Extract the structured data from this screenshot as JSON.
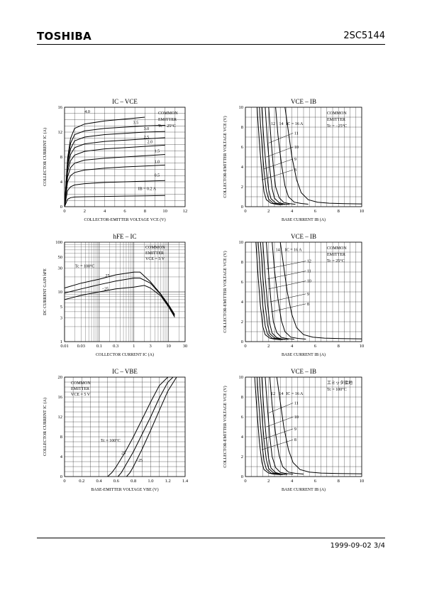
{
  "header": {
    "brand": "TOSHIBA",
    "part_number": "2SC5144"
  },
  "footer": {
    "date_page": "1999-09-02   3/4"
  },
  "chart_data": [
    {
      "id": "ic-vce",
      "type": "line",
      "title": "IC – VCE",
      "xlabel": "COLLECTOR-EMITTER VOLTAGE  VCE  (V)",
      "ylabel": "COLLECTOR CURRENT  IC  (A)",
      "xlim": [
        0,
        12
      ],
      "ylim": [
        0,
        16
      ],
      "xticks": [
        0,
        2,
        4,
        6,
        8,
        10,
        12
      ],
      "yticks": [
        0,
        4,
        8,
        12,
        16
      ],
      "notes": [
        "COMMON",
        "EMITTER",
        "Tc = 25°C"
      ],
      "param": "IB",
      "series": [
        {
          "name": "0.2 A",
          "label": "IB = 0.2 A",
          "x": [
            0,
            0.3,
            0.6,
            1,
            2,
            4,
            6,
            8,
            10
          ],
          "y": [
            0,
            1.2,
            1.45,
            1.55,
            1.6,
            1.65,
            1.7,
            1.75,
            1.8
          ]
        },
        {
          "name": "0.5",
          "label": "0.5",
          "x": [
            0,
            0.3,
            0.6,
            1,
            2,
            4,
            6,
            8,
            10
          ],
          "y": [
            0,
            2.6,
            3.2,
            3.5,
            3.7,
            3.9,
            4.0,
            4.1,
            4.2
          ]
        },
        {
          "name": "1.0",
          "label": "1.0",
          "x": [
            0,
            0.3,
            0.6,
            1,
            2,
            4,
            6,
            8,
            10
          ],
          "y": [
            0,
            4,
            5,
            5.5,
            5.9,
            6.2,
            6.4,
            6.55,
            6.7
          ]
        },
        {
          "name": "1.5",
          "label": "1.5",
          "x": [
            0,
            0.3,
            0.6,
            1,
            2,
            4,
            6,
            8,
            10
          ],
          "y": [
            0,
            4.8,
            6.3,
            7,
            7.5,
            7.8,
            8.0,
            8.2,
            8.4
          ]
        },
        {
          "name": "2.0",
          "label": "2.0",
          "x": [
            0,
            0.3,
            0.6,
            1,
            2,
            4,
            6,
            8,
            10
          ],
          "y": [
            0,
            5.6,
            7.4,
            8.3,
            8.9,
            9.3,
            9.5,
            9.7,
            9.9
          ]
        },
        {
          "name": "2.5",
          "label": "2.5",
          "x": [
            0,
            0.3,
            0.6,
            1,
            2,
            4,
            6,
            8,
            10
          ],
          "y": [
            0,
            6.2,
            8.4,
            9.5,
            10.1,
            10.5,
            10.7,
            10.9,
            11.1
          ]
        },
        {
          "name": "3.0",
          "label": "3.0",
          "x": [
            0,
            0.3,
            0.6,
            1,
            2,
            4,
            6,
            8,
            10
          ],
          "y": [
            0,
            6.8,
            9.3,
            10.6,
            11.2,
            11.6,
            11.8,
            12.0,
            12.1
          ]
        },
        {
          "name": "3.5",
          "label": "3.5",
          "x": [
            0,
            0.3,
            0.6,
            1,
            2,
            4,
            6,
            8,
            10
          ],
          "y": [
            0,
            7.3,
            10.2,
            11.6,
            12.2,
            12.6,
            12.8,
            13.0,
            13.1
          ]
        },
        {
          "name": "4.0",
          "label": "4.0",
          "x": [
            0,
            0.3,
            0.6,
            1,
            2,
            4,
            6,
            8
          ],
          "y": [
            0,
            7.8,
            11,
            12.6,
            13.3,
            13.8,
            14.1,
            14.4
          ]
        }
      ]
    },
    {
      "id": "vce-ib-m25",
      "type": "line",
      "title": "VCE – IB",
      "xlabel": "BASE CURRENT  IB  (A)",
      "ylabel": "COLLECTOR-EMITTER VOLTAGE  VCE  (V)",
      "xlim": [
        0,
        10
      ],
      "ylim": [
        0,
        10
      ],
      "xticks": [
        0,
        2,
        4,
        6,
        8,
        10
      ],
      "yticks": [
        0,
        2,
        4,
        6,
        8,
        10
      ],
      "notes": [
        "COMMON",
        "EMITTER",
        "Tc = −25°C"
      ],
      "param": "IC",
      "labels": [
        "12",
        "14",
        "IC = 16 A",
        "11",
        "10",
        "9",
        "8"
      ],
      "series": [
        {
          "name": "8",
          "x": [
            1.0,
            1.2,
            1.4,
            1.6,
            1.8,
            2.2,
            2.6,
            3
          ],
          "y": [
            10,
            6.5,
            3.5,
            1.5,
            0.7,
            0.35,
            0.25,
            0.2
          ]
        },
        {
          "name": "9",
          "x": [
            1.2,
            1.4,
            1.6,
            1.8,
            2.0,
            2.4,
            2.8,
            3.2
          ],
          "y": [
            10,
            6.5,
            3.6,
            1.6,
            0.75,
            0.35,
            0.25,
            0.2
          ]
        },
        {
          "name": "10",
          "x": [
            1.4,
            1.6,
            1.8,
            2.0,
            2.2,
            2.6,
            3,
            3.4
          ],
          "y": [
            10,
            6.5,
            3.7,
            1.7,
            0.8,
            0.38,
            0.27,
            0.22
          ]
        },
        {
          "name": "11",
          "x": [
            1.7,
            1.9,
            2.1,
            2.3,
            2.5,
            2.9,
            3.3,
            3.8
          ],
          "y": [
            10,
            6.5,
            3.8,
            1.8,
            0.85,
            0.4,
            0.28,
            0.22
          ]
        },
        {
          "name": "12",
          "x": [
            2.0,
            2.2,
            2.4,
            2.6,
            2.9,
            3.3,
            3.8,
            4.3
          ],
          "y": [
            10,
            6.8,
            4.0,
            2.0,
            0.9,
            0.42,
            0.3,
            0.24
          ]
        },
        {
          "name": "14",
          "x": [
            2.6,
            2.8,
            3.1,
            3.4,
            3.7,
            4.2,
            4.8,
            5.4
          ],
          "y": [
            10,
            7.2,
            4.3,
            2.1,
            1.0,
            0.45,
            0.32,
            0.25
          ]
        },
        {
          "name": "16",
          "x": [
            3.4,
            3.7,
            4.0,
            4.4,
            4.8,
            5.4,
            6.2,
            7.2,
            8.5,
            10
          ],
          "y": [
            10,
            7.5,
            5.0,
            2.7,
            1.4,
            0.7,
            0.45,
            0.35,
            0.3,
            0.28
          ]
        }
      ]
    },
    {
      "id": "hfe-ic",
      "type": "line",
      "title": "hFE – IC",
      "xlabel": "COLLECTOR  CURRENT  IC  (A)",
      "ylabel": "DC CURRENT GAIN  hFE",
      "xscale": "log",
      "yscale": "log",
      "xlim": [
        0.01,
        30
      ],
      "ylim": [
        1,
        100
      ],
      "xticks": [
        0.01,
        0.03,
        0.1,
        0.3,
        1,
        3,
        10,
        30
      ],
      "xticklabels": [
        "0.01",
        "0.03",
        "0.1",
        "0.3",
        "1",
        "3",
        "10",
        "30"
      ],
      "yticks": [
        1,
        3,
        5,
        10,
        30,
        50,
        100
      ],
      "notes": [
        "COMMON",
        "EMITTER",
        "VCE = 5 V"
      ],
      "param": "Tc",
      "series": [
        {
          "name": "Tc = 100°C",
          "x": [
            0.01,
            0.03,
            0.1,
            0.3,
            1,
            1.5,
            3,
            6,
            10,
            15
          ],
          "y": [
            12,
            15,
            18,
            22,
            25,
            25,
            16,
            9,
            5.5,
            3.5
          ]
        },
        {
          "name": "25",
          "x": [
            0.01,
            0.03,
            0.1,
            0.3,
            1,
            1.5,
            3,
            6,
            10,
            15
          ],
          "y": [
            9.5,
            11.5,
            14,
            16.5,
            19,
            19,
            15,
            8.8,
            5.2,
            3.3
          ]
        },
        {
          "name": "−25",
          "x": [
            0.01,
            0.03,
            0.1,
            0.3,
            1,
            2,
            3,
            6,
            10,
            15
          ],
          "y": [
            7,
            8.5,
            10,
            11.5,
            12.5,
            13.5,
            12,
            8.3,
            5.0,
            3.1
          ]
        }
      ]
    },
    {
      "id": "vce-ib-25",
      "type": "line",
      "title": "VCE – IB",
      "xlabel": "BASE CURRENT  IB  (A)",
      "ylabel": "COLLECTOR-EMITTER VOLTAGE  VCE  (V)",
      "xlim": [
        0,
        10
      ],
      "ylim": [
        0,
        10
      ],
      "xticks": [
        0,
        2,
        4,
        6,
        8,
        10
      ],
      "yticks": [
        0,
        2,
        4,
        6,
        8,
        10
      ],
      "notes": [
        "COMMON",
        "EMITTER",
        "Tc = 25°C"
      ],
      "param": "IC",
      "labels": [
        "14",
        "IC = 16 A",
        "12",
        "11",
        "10",
        "9",
        "8"
      ],
      "series": [
        {
          "name": "8",
          "x": [
            0.9,
            1.1,
            1.3,
            1.5,
            1.7,
            2.1,
            2.5,
            3
          ],
          "y": [
            10,
            6.5,
            3.5,
            1.5,
            0.7,
            0.35,
            0.25,
            0.2
          ]
        },
        {
          "name": "9",
          "x": [
            1.1,
            1.3,
            1.5,
            1.7,
            1.9,
            2.3,
            2.7,
            3.2
          ],
          "y": [
            10,
            6.5,
            3.6,
            1.6,
            0.75,
            0.35,
            0.25,
            0.2
          ]
        },
        {
          "name": "10",
          "x": [
            1.3,
            1.5,
            1.7,
            1.9,
            2.1,
            2.5,
            2.9,
            3.4
          ],
          "y": [
            10,
            6.5,
            3.7,
            1.7,
            0.8,
            0.38,
            0.27,
            0.22
          ]
        },
        {
          "name": "11",
          "x": [
            1.5,
            1.7,
            1.9,
            2.1,
            2.3,
            2.7,
            3.1,
            3.7
          ],
          "y": [
            10,
            6.5,
            3.8,
            1.8,
            0.85,
            0.4,
            0.28,
            0.22
          ]
        },
        {
          "name": "12",
          "x": [
            1.8,
            2.0,
            2.2,
            2.4,
            2.7,
            3.1,
            3.6,
            4.2
          ],
          "y": [
            10,
            6.8,
            4.0,
            2.0,
            0.9,
            0.42,
            0.3,
            0.24
          ]
        },
        {
          "name": "14",
          "x": [
            2.3,
            2.5,
            2.8,
            3.1,
            3.4,
            3.9,
            4.5,
            5.2
          ],
          "y": [
            10,
            7.2,
            4.3,
            2.1,
            1.0,
            0.45,
            0.32,
            0.25
          ]
        },
        {
          "name": "16",
          "x": [
            3.0,
            3.3,
            3.6,
            4.0,
            4.4,
            5.0,
            5.8,
            6.8,
            8.2,
            10
          ],
          "y": [
            10,
            7.5,
            5.0,
            2.7,
            1.4,
            0.7,
            0.45,
            0.35,
            0.3,
            0.28
          ]
        }
      ]
    },
    {
      "id": "ic-vbe",
      "type": "line",
      "title": "IC – VBE",
      "xlabel": "BASE-EMITTER VOLTAGE  VBE  (V)",
      "ylabel": "COLLECTOR CURRENT  IC  (A)",
      "xlim": [
        0,
        1.4
      ],
      "ylim": [
        0,
        20
      ],
      "xticks": [
        0,
        0.2,
        0.4,
        0.6,
        0.8,
        1.0,
        1.2,
        1.4
      ],
      "xticklabels": [
        "0",
        "0.2",
        "0.4",
        "0.6",
        "0.8",
        "1.0",
        "1.2",
        "1.4"
      ],
      "yticks": [
        0,
        4,
        8,
        12,
        16,
        20
      ],
      "notes": [
        "COMMON",
        "EMITTER",
        "VCE = 5 V"
      ],
      "param": "Tc",
      "series": [
        {
          "name": "Tc = 100°C",
          "x": [
            0.5,
            0.55,
            0.6,
            0.7,
            0.8,
            0.9,
            1.0,
            1.1,
            1.2
          ],
          "y": [
            0,
            0.8,
            2,
            4.8,
            8,
            11.5,
            15,
            18.3,
            20
          ]
        },
        {
          "name": "25",
          "x": [
            0.62,
            0.66,
            0.7,
            0.8,
            0.9,
            1.0,
            1.1,
            1.2,
            1.26
          ],
          "y": [
            0,
            0.8,
            2,
            5,
            8.5,
            12,
            15.8,
            19,
            20
          ]
        },
        {
          "name": "−25",
          "x": [
            0.72,
            0.76,
            0.8,
            0.9,
            1.0,
            1.1,
            1.2,
            1.3
          ],
          "y": [
            0,
            0.8,
            2,
            5.5,
            9.3,
            13.3,
            17.2,
            20
          ]
        }
      ]
    },
    {
      "id": "vce-ib-100",
      "type": "line",
      "title": "VCE – IB",
      "xlabel": "BASE  CURRENT  IB  (A)",
      "ylabel": "COLLECTOR-EMITTER VOLTAGE  VCE  (V)",
      "xlim": [
        0,
        10
      ],
      "ylim": [
        0,
        10
      ],
      "xticks": [
        0,
        2,
        4,
        6,
        8,
        10
      ],
      "yticks": [
        0,
        2,
        4,
        6,
        8,
        10
      ],
      "notes": [
        "エミッタ接地",
        "Tc = 100°C"
      ],
      "param": "IC",
      "labels": [
        "12",
        "14",
        "IC = 16 A",
        "11",
        "10",
        "9",
        "8"
      ],
      "series": [
        {
          "name": "8",
          "x": [
            0.8,
            1.0,
            1.2,
            1.4,
            1.6,
            2.0,
            2.4,
            3
          ],
          "y": [
            10,
            6.5,
            3.5,
            1.5,
            0.7,
            0.35,
            0.25,
            0.2
          ]
        },
        {
          "name": "9",
          "x": [
            1.0,
            1.2,
            1.4,
            1.6,
            1.8,
            2.2,
            2.6,
            3.2
          ],
          "y": [
            10,
            6.5,
            3.6,
            1.6,
            0.75,
            0.35,
            0.25,
            0.2
          ]
        },
        {
          "name": "10",
          "x": [
            1.2,
            1.4,
            1.6,
            1.8,
            2.0,
            2.4,
            2.8,
            3.4
          ],
          "y": [
            10,
            6.5,
            3.7,
            1.7,
            0.8,
            0.38,
            0.27,
            0.22
          ]
        },
        {
          "name": "11",
          "x": [
            1.4,
            1.6,
            1.8,
            2.0,
            2.2,
            2.6,
            3.0,
            3.6
          ],
          "y": [
            10,
            6.5,
            3.8,
            1.8,
            0.85,
            0.4,
            0.28,
            0.22
          ]
        },
        {
          "name": "12",
          "x": [
            1.7,
            1.9,
            2.1,
            2.3,
            2.6,
            3.0,
            3.5,
            4.1
          ],
          "y": [
            10,
            6.8,
            4.0,
            2.0,
            0.9,
            0.42,
            0.3,
            0.24
          ]
        },
        {
          "name": "14",
          "x": [
            2.1,
            2.3,
            2.6,
            2.9,
            3.2,
            3.7,
            4.3,
            5.0
          ],
          "y": [
            10,
            7.2,
            4.3,
            2.1,
            1.0,
            0.45,
            0.32,
            0.25
          ]
        },
        {
          "name": "16",
          "x": [
            2.7,
            3.0,
            3.3,
            3.7,
            4.1,
            4.7,
            5.5,
            6.5,
            8.0,
            10
          ],
          "y": [
            10,
            7.5,
            5.0,
            2.7,
            1.4,
            0.7,
            0.45,
            0.35,
            0.3,
            0.28
          ]
        }
      ]
    }
  ]
}
